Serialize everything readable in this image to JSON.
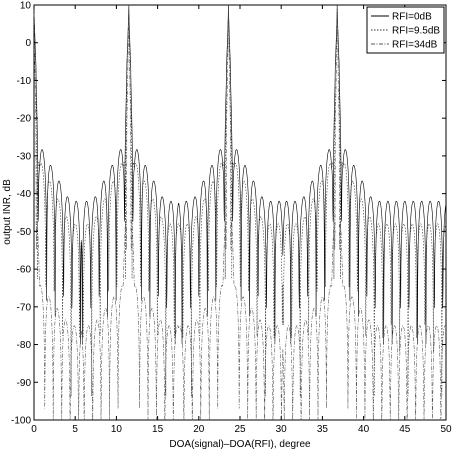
{
  "chart_data": {
    "type": "line",
    "title": "",
    "xlabel": "DOA(signal)–DOA(RFI), degree",
    "ylabel": "output INR, dB",
    "xlim": [
      0,
      50
    ],
    "ylim": [
      -100,
      10
    ],
    "xticks": [
      0,
      5,
      10,
      15,
      20,
      25,
      30,
      35,
      40,
      45,
      50
    ],
    "yticks": [
      10,
      0,
      -10,
      -20,
      -30,
      -40,
      -50,
      -60,
      -70,
      -80,
      -90,
      -100
    ],
    "grid": false,
    "legend_position": "top-right",
    "series": [
      {
        "name": "RFI=0dB",
        "line_style": "solid",
        "color": "#000000",
        "peaks_x": [
          0,
          11.5,
          23.6,
          36.8
        ],
        "peak_value": 10,
        "sidelobe_envelope_min": -27,
        "sidelobe_envelope_max": -42,
        "null_depth": -100
      },
      {
        "name": "RFI=9.5dB",
        "line_style": "dotted",
        "color": "#333333",
        "peaks_x": [
          0,
          11.5,
          23.6,
          36.8
        ],
        "peak_value": 10,
        "sidelobe_envelope_min": -31,
        "sidelobe_envelope_max": -48,
        "null_depth": -100
      },
      {
        "name": "RFI=34dB",
        "line_style": "dashdot",
        "color": "#555555",
        "peaks_x": [
          0,
          11.5,
          23.6,
          36.8
        ],
        "peak_value": 10,
        "sidelobe_envelope_min": -64,
        "sidelobe_envelope_max": -75,
        "null_depth": -100
      }
    ]
  }
}
